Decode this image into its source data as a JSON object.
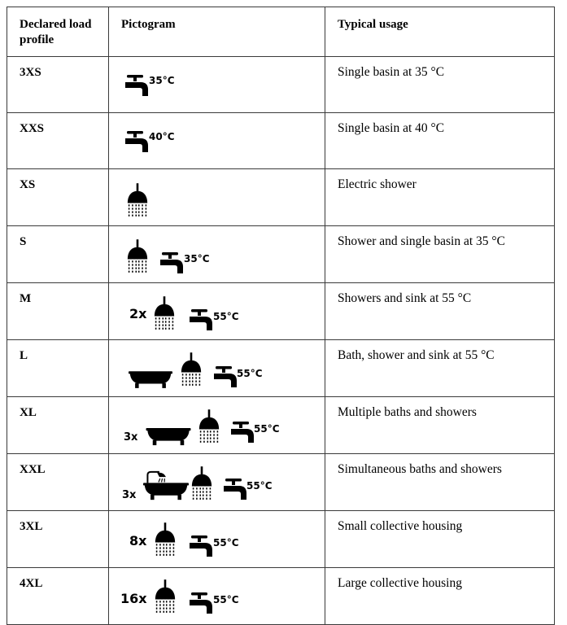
{
  "headers": {
    "profile": "Declared load profile",
    "pictogram": "Pictogram",
    "usage": "Typical usage"
  },
  "rows": [
    {
      "profile": "3XS",
      "usage": "Single basin at 35 °C",
      "pictogram": {
        "icons": [
          "tap-icon"
        ],
        "temperature": "35°C",
        "multiplier": ""
      }
    },
    {
      "profile": "XXS",
      "usage": "Single basin at 40 °C",
      "pictogram": {
        "icons": [
          "tap-icon"
        ],
        "temperature": "40°C",
        "multiplier": ""
      }
    },
    {
      "profile": "XS",
      "usage": "Electric shower",
      "pictogram": {
        "icons": [
          "shower-icon"
        ],
        "temperature": "",
        "multiplier": ""
      }
    },
    {
      "profile": "S",
      "usage": "Shower and single basin at 35 °C",
      "pictogram": {
        "icons": [
          "shower-icon",
          "tap-icon"
        ],
        "temperature": "35°C",
        "multiplier": ""
      }
    },
    {
      "profile": "M",
      "usage": "Showers and sink at 55 °C",
      "pictogram": {
        "icons": [
          "shower-icon",
          "tap-icon"
        ],
        "temperature": "55°C",
        "multiplier": "2x"
      }
    },
    {
      "profile": "L",
      "usage": "Bath, shower and sink at 55 °C",
      "pictogram": {
        "icons": [
          "bathtub-icon",
          "shower-icon",
          "tap-icon"
        ],
        "temperature": "55°C",
        "multiplier": ""
      }
    },
    {
      "profile": "XL",
      "usage": "Multiple baths and showers",
      "pictogram": {
        "icons": [
          "bathtub-icon",
          "shower-icon",
          "tap-icon"
        ],
        "temperature": "55°C",
        "multiplier": "3x"
      }
    },
    {
      "profile": "XXL",
      "usage": "Simultaneous baths and showers",
      "pictogram": {
        "icons": [
          "bathtub-with-shower-icon",
          "shower-icon",
          "tap-icon"
        ],
        "temperature": "55°C",
        "multiplier": "3x"
      }
    },
    {
      "profile": "3XL",
      "usage": "Small collective housing",
      "pictogram": {
        "icons": [
          "shower-icon",
          "tap-icon"
        ],
        "temperature": "55°C",
        "multiplier": "8x"
      }
    },
    {
      "profile": "4XL",
      "usage": "Large collective housing",
      "pictogram": {
        "icons": [
          "shower-icon",
          "tap-icon"
        ],
        "temperature": "55°C",
        "multiplier": "16x"
      }
    }
  ]
}
